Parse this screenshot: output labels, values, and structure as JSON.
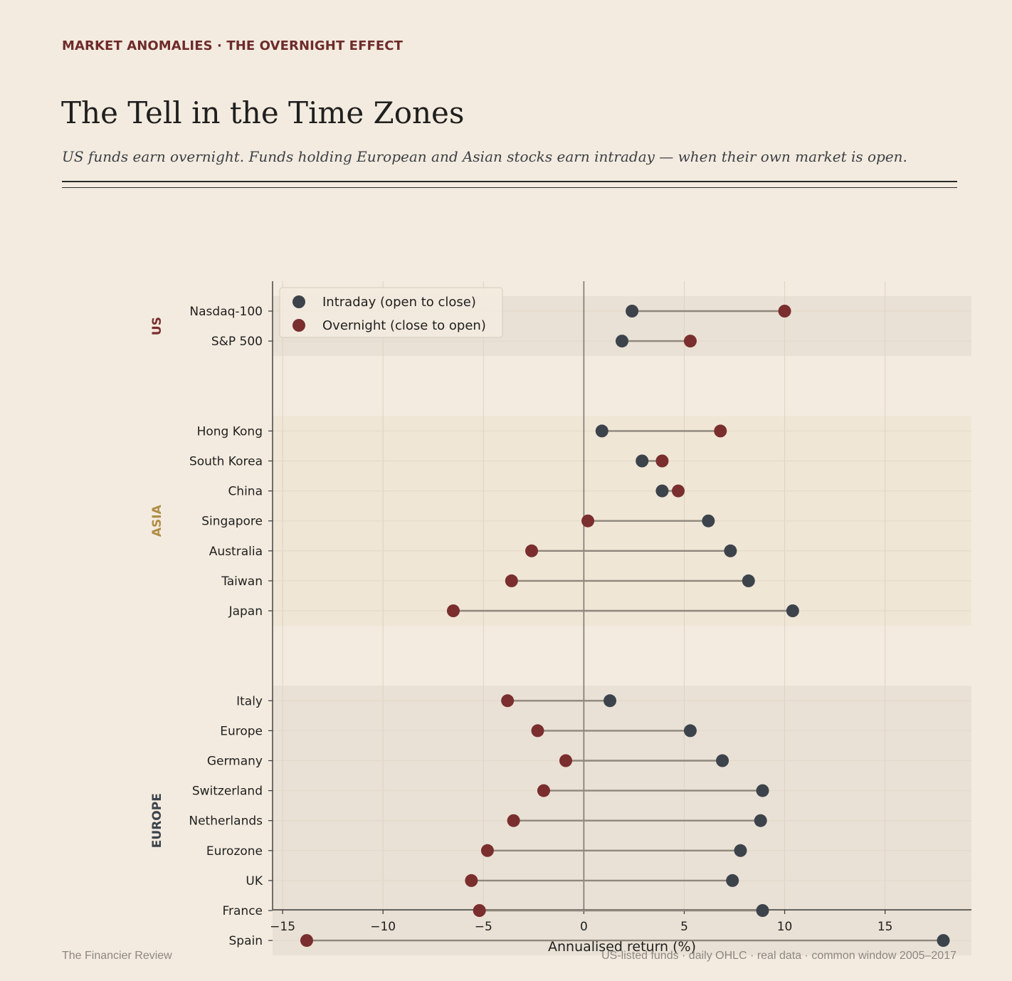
{
  "header": {
    "kicker": "MARKET ANOMALIES · THE OVERNIGHT EFFECT",
    "title": "The Tell in the Time Zones",
    "subtitle": "US funds earn overnight. Funds holding European and Asian stocks earn intraday — when their own market is open."
  },
  "footer": {
    "source": "The Financier Review",
    "note": "US-listed funds · daily OHLC · real data · common window 2005–2017"
  },
  "colors": {
    "intraday": "#3d434b",
    "overnight": "#7a2e2e",
    "connector": "#8f877b",
    "us_label": "#7a2e2e",
    "asia_label": "#b08d45",
    "europe_label": "#3d434b"
  },
  "chart_data": {
    "type": "dumbbell",
    "xlabel": "Annualised return  (%)",
    "xlim": [
      -15.5,
      19.3
    ],
    "xticks": [
      -15,
      -10,
      -5,
      0,
      5,
      10,
      15
    ],
    "xtick_labels": [
      "−15",
      "−10",
      "−5",
      "0",
      "5",
      "10",
      "15"
    ],
    "grid": true,
    "legend": {
      "position": "top-left",
      "entries": [
        "Intraday (open to close)",
        "Overnight (close to open)"
      ]
    },
    "groups": [
      {
        "label": "US",
        "rows": [
          {
            "name": "Nasdaq-100",
            "intraday": 2.4,
            "overnight": 10.0
          },
          {
            "name": "S&P 500",
            "intraday": 1.9,
            "overnight": 5.3
          }
        ]
      },
      {
        "label": "ASIA",
        "rows": [
          {
            "name": "Hong Kong",
            "intraday": 0.9,
            "overnight": 6.8
          },
          {
            "name": "South Korea",
            "intraday": 2.9,
            "overnight": 3.9
          },
          {
            "name": "China",
            "intraday": 3.9,
            "overnight": 4.7
          },
          {
            "name": "Singapore",
            "intraday": 6.2,
            "overnight": 0.2
          },
          {
            "name": "Australia",
            "intraday": 7.3,
            "overnight": -2.6
          },
          {
            "name": "Taiwan",
            "intraday": 8.2,
            "overnight": -3.6
          },
          {
            "name": "Japan",
            "intraday": 10.4,
            "overnight": -6.5
          }
        ]
      },
      {
        "label": "EUROPE",
        "rows": [
          {
            "name": "Italy",
            "intraday": 1.3,
            "overnight": -3.8
          },
          {
            "name": "Europe",
            "intraday": 5.3,
            "overnight": -2.3
          },
          {
            "name": "Germany",
            "intraday": 6.9,
            "overnight": -0.9
          },
          {
            "name": "Switzerland",
            "intraday": 8.9,
            "overnight": -2.0
          },
          {
            "name": "Netherlands",
            "intraday": 8.8,
            "overnight": -3.5
          },
          {
            "name": "Eurozone",
            "intraday": 7.8,
            "overnight": -4.8
          },
          {
            "name": "UK",
            "intraday": 7.4,
            "overnight": -5.6
          },
          {
            "name": "France",
            "intraday": 8.9,
            "overnight": -5.2
          },
          {
            "name": "Spain",
            "intraday": 17.9,
            "overnight": -13.8
          }
        ]
      }
    ]
  }
}
